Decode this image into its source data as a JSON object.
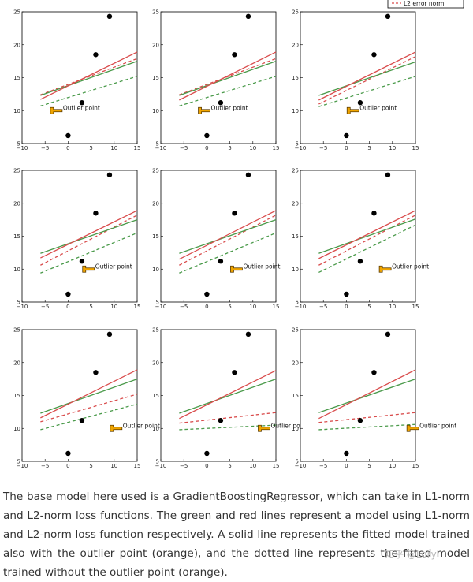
{
  "legend": {
    "label": "L2 error norm",
    "color": "#d94c4c",
    "style": "dashed"
  },
  "chart_data": {
    "type": "scatter",
    "grid_layout": "3x3",
    "xlim": [
      -10,
      15
    ],
    "ylim": [
      5,
      25
    ],
    "xticks": [
      -10,
      -5,
      0,
      5,
      10,
      15
    ],
    "yticks": [
      5,
      10,
      15,
      20,
      25
    ],
    "xtick_labels": [
      "−10",
      "−5",
      "0",
      "5",
      "10",
      "15"
    ],
    "ytick_labels": [
      "5",
      "10",
      "15",
      "20",
      "25"
    ],
    "points": [
      [
        0,
        6.2
      ],
      [
        3,
        11.2
      ],
      [
        6,
        18.5
      ],
      [
        9,
        24.3
      ]
    ],
    "outlier_label": "Outlier point",
    "colors": {
      "l1": "#4a9a4a",
      "l2": "#d94c4c",
      "point": "#000000",
      "outlier": "#f0a500"
    },
    "panels": [
      {
        "outlier": [
          -3,
          10
        ],
        "l1_solid": [
          [
            -6,
            12.3
          ],
          [
            15,
            17.5
          ]
        ],
        "l2_solid": [
          [
            -6,
            11.7
          ],
          [
            15,
            18.9
          ]
        ],
        "l1_dashed": [
          [
            -6,
            10.7
          ],
          [
            15,
            15.2
          ]
        ],
        "l2_dashed": [
          [
            -6,
            12.4
          ],
          [
            15,
            17.9
          ]
        ]
      },
      {
        "outlier": [
          -1,
          10
        ],
        "l1_solid": [
          [
            -6,
            12.3
          ],
          [
            15,
            17.5
          ]
        ],
        "l2_solid": [
          [
            -6,
            11.6
          ],
          [
            15,
            18.9
          ]
        ],
        "l1_dashed": [
          [
            -6,
            10.7
          ],
          [
            15,
            15.2
          ]
        ],
        "l2_dashed": [
          [
            -6,
            12.4
          ],
          [
            15,
            17.9
          ]
        ]
      },
      {
        "outlier": [
          1,
          10
        ],
        "l1_solid": [
          [
            -6,
            12.3
          ],
          [
            15,
            17.4
          ]
        ],
        "l2_solid": [
          [
            -6,
            11.6
          ],
          [
            15,
            18.9
          ]
        ],
        "l1_dashed": [
          [
            -6,
            10.6
          ],
          [
            15,
            15.2
          ]
        ],
        "l2_dashed": [
          [
            -6,
            11.0
          ],
          [
            15,
            18.2
          ]
        ]
      },
      {
        "outlier": [
          4,
          10
        ],
        "l1_solid": [
          [
            -6,
            12.4
          ],
          [
            15,
            17.5
          ]
        ],
        "l2_solid": [
          [
            -6,
            11.7
          ],
          [
            15,
            18.9
          ]
        ],
        "l1_dashed": [
          [
            -6,
            9.4
          ],
          [
            15,
            15.5
          ]
        ],
        "l2_dashed": [
          [
            -6,
            10.6
          ],
          [
            15,
            18.2
          ]
        ]
      },
      {
        "outlier": [
          6,
          10
        ],
        "l1_solid": [
          [
            -6,
            12.4
          ],
          [
            15,
            17.5
          ]
        ],
        "l2_solid": [
          [
            -6,
            11.5
          ],
          [
            15,
            18.9
          ]
        ],
        "l1_dashed": [
          [
            -6,
            9.4
          ],
          [
            15,
            15.5
          ]
        ],
        "l2_dashed": [
          [
            -6,
            10.6
          ],
          [
            15,
            18.2
          ]
        ]
      },
      {
        "outlier": [
          8,
          10
        ],
        "l1_solid": [
          [
            -6,
            12.4
          ],
          [
            15,
            17.6
          ]
        ],
        "l2_solid": [
          [
            -6,
            11.6
          ],
          [
            15,
            18.9
          ]
        ],
        "l1_dashed": [
          [
            -6,
            9.5
          ],
          [
            15,
            16.7
          ]
        ],
        "l2_dashed": [
          [
            -6,
            10.6
          ],
          [
            15,
            18.2
          ]
        ]
      },
      {
        "outlier": [
          10,
          10
        ],
        "l1_solid": [
          [
            -6,
            12.3
          ],
          [
            15,
            17.5
          ]
        ],
        "l2_solid": [
          [
            -6,
            11.6
          ],
          [
            15,
            18.9
          ]
        ],
        "l1_dashed": [
          [
            -6,
            9.8
          ],
          [
            15,
            13.7
          ]
        ],
        "l2_dashed": [
          [
            -6,
            11.0
          ],
          [
            15,
            15.2
          ]
        ]
      },
      {
        "outlier": [
          12,
          10
        ],
        "l1_solid": [
          [
            -6,
            12.3
          ],
          [
            15,
            17.5
          ]
        ],
        "l2_solid": [
          [
            -6,
            11.5
          ],
          [
            15,
            18.8
          ]
        ],
        "l1_dashed": [
          [
            -6,
            9.8
          ],
          [
            15,
            10.5
          ]
        ],
        "l2_dashed": [
          [
            -6,
            10.8
          ],
          [
            15,
            12.4
          ]
        ]
      },
      {
        "outlier": [
          14,
          10
        ],
        "l1_solid": [
          [
            -6,
            12.4
          ],
          [
            15,
            17.5
          ]
        ],
        "l2_solid": [
          [
            -6,
            11.5
          ],
          [
            15,
            18.9
          ]
        ],
        "l1_dashed": [
          [
            -6,
            9.8
          ],
          [
            15,
            10.6
          ]
        ],
        "l2_dashed": [
          [
            -6,
            10.9
          ],
          [
            15,
            12.4
          ]
        ]
      }
    ]
  },
  "caption": "The base model here used is a GradientBoostingRegressor, which can take in L1-norm and L2-norm loss functions. The green and red lines represent a model using L1-norm and L2-norm loss function respectively. A solid line represents the fitted model trained also with the outlier point (orange), and the dotted line represents the fitted model trained without the outlier point (orange).",
  "watermark": "知乎 @Lory"
}
